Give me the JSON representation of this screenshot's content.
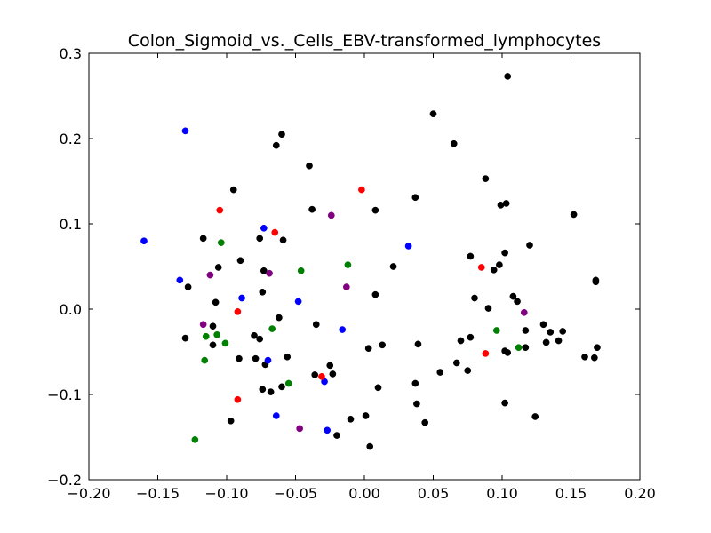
{
  "chart_data": {
    "type": "scatter",
    "title": "Colon_Sigmoid_vs._Cells_EBV-transformed_lymphocytes",
    "xlabel": "",
    "ylabel": "",
    "xlim": [
      -0.2,
      0.2
    ],
    "ylim": [
      -0.2,
      0.3
    ],
    "x_ticks": [
      -0.2,
      -0.15,
      -0.1,
      -0.05,
      0.0,
      0.05,
      0.1,
      0.15,
      0.2
    ],
    "x_tick_labels": [
      "−0.20",
      "−0.15",
      "−0.10",
      "−0.05",
      "0.00",
      "0.05",
      "0.10",
      "0.15",
      "0.20"
    ],
    "y_ticks": [
      -0.2,
      -0.1,
      0.0,
      0.1,
      0.2,
      0.3
    ],
    "y_tick_labels": [
      "−0.2",
      "−0.1",
      "0.0",
      "0.1",
      "0.2",
      "0.3"
    ],
    "grid": false,
    "legend": "none",
    "series": [
      {
        "color": "#000000",
        "points": [
          [
            0.104,
            0.273
          ],
          [
            0.05,
            0.229
          ],
          [
            -0.06,
            0.205
          ],
          [
            0.065,
            0.194
          ],
          [
            -0.064,
            0.192
          ],
          [
            -0.04,
            0.168
          ],
          [
            0.088,
            0.153
          ],
          [
            -0.095,
            0.14
          ],
          [
            0.037,
            0.131
          ],
          [
            0.103,
            0.124
          ],
          [
            0.099,
            0.122
          ],
          [
            -0.038,
            0.117
          ],
          [
            0.008,
            0.116
          ],
          [
            0.152,
            0.111
          ],
          [
            -0.117,
            0.083
          ],
          [
            -0.076,
            0.083
          ],
          [
            -0.059,
            0.081
          ],
          [
            0.12,
            0.075
          ],
          [
            0.102,
            0.066
          ],
          [
            0.077,
            0.062
          ],
          [
            -0.09,
            0.057
          ],
          [
            0.098,
            0.052
          ],
          [
            0.021,
            0.05
          ],
          [
            -0.106,
            0.049
          ],
          [
            0.094,
            0.046
          ],
          [
            -0.073,
            0.045
          ],
          [
            0.168,
            0.034
          ],
          [
            0.168,
            0.032
          ],
          [
            -0.128,
            0.026
          ],
          [
            -0.074,
            0.02
          ],
          [
            0.008,
            0.017
          ],
          [
            0.108,
            0.015
          ],
          [
            0.08,
            0.013
          ],
          [
            0.111,
            0.009
          ],
          [
            -0.108,
            0.008
          ],
          [
            0.09,
            0.001
          ],
          [
            -0.062,
            -0.01
          ],
          [
            0.13,
            -0.018
          ],
          [
            -0.035,
            -0.018
          ],
          [
            -0.11,
            -0.02
          ],
          [
            0.117,
            -0.025
          ],
          [
            0.135,
            -0.027
          ],
          [
            0.144,
            -0.026
          ],
          [
            -0.08,
            -0.031
          ],
          [
            0.077,
            -0.033
          ],
          [
            -0.13,
            -0.034
          ],
          [
            -0.076,
            -0.035
          ],
          [
            0.07,
            -0.037
          ],
          [
            0.141,
            -0.037
          ],
          [
            0.132,
            -0.039
          ],
          [
            0.013,
            -0.042
          ],
          [
            0.039,
            -0.041
          ],
          [
            -0.11,
            -0.042
          ],
          [
            0.117,
            -0.045
          ],
          [
            0.169,
            -0.045
          ],
          [
            0.003,
            -0.046
          ],
          [
            0.102,
            -0.049
          ],
          [
            0.104,
            -0.051
          ],
          [
            -0.056,
            -0.056
          ],
          [
            -0.091,
            -0.058
          ],
          [
            -0.079,
            -0.058
          ],
          [
            0.16,
            -0.056
          ],
          [
            0.167,
            -0.057
          ],
          [
            0.067,
            -0.063
          ],
          [
            -0.072,
            -0.065
          ],
          [
            -0.025,
            -0.066
          ],
          [
            0.075,
            -0.072
          ],
          [
            0.055,
            -0.074
          ],
          [
            -0.023,
            -0.076
          ],
          [
            -0.036,
            -0.077
          ],
          [
            0.037,
            -0.087
          ],
          [
            -0.06,
            -0.091
          ],
          [
            0.01,
            -0.092
          ],
          [
            -0.074,
            -0.094
          ],
          [
            -0.068,
            -0.097
          ],
          [
            0.102,
            -0.11
          ],
          [
            0.038,
            -0.111
          ],
          [
            0.124,
            -0.126
          ],
          [
            0.001,
            -0.125
          ],
          [
            -0.01,
            -0.129
          ],
          [
            -0.097,
            -0.131
          ],
          [
            0.044,
            -0.133
          ],
          [
            -0.02,
            -0.148
          ],
          [
            0.004,
            -0.161
          ]
        ]
      },
      {
        "color": "#0000ff",
        "points": [
          [
            -0.13,
            0.209
          ],
          [
            -0.16,
            0.08
          ],
          [
            -0.073,
            0.095
          ],
          [
            0.032,
            0.074
          ],
          [
            -0.134,
            0.034
          ],
          [
            -0.089,
            0.013
          ],
          [
            -0.048,
            0.009
          ],
          [
            -0.016,
            -0.024
          ],
          [
            -0.07,
            -0.06
          ],
          [
            -0.029,
            -0.085
          ],
          [
            -0.064,
            -0.125
          ],
          [
            -0.027,
            -0.142
          ]
        ]
      },
      {
        "color": "#ff0000",
        "points": [
          [
            -0.002,
            0.14
          ],
          [
            -0.105,
            0.116
          ],
          [
            -0.065,
            0.09
          ],
          [
            0.085,
            0.049
          ],
          [
            -0.092,
            -0.003
          ],
          [
            -0.031,
            -0.079
          ],
          [
            0.088,
            -0.052
          ],
          [
            -0.092,
            -0.106
          ]
        ]
      },
      {
        "color": "#008000",
        "points": [
          [
            -0.104,
            0.078
          ],
          [
            -0.012,
            0.052
          ],
          [
            -0.046,
            0.045
          ],
          [
            -0.067,
            -0.023
          ],
          [
            -0.115,
            -0.032
          ],
          [
            -0.107,
            -0.03
          ],
          [
            -0.101,
            -0.04
          ],
          [
            0.096,
            -0.025
          ],
          [
            0.112,
            -0.045
          ],
          [
            -0.116,
            -0.06
          ],
          [
            -0.055,
            -0.087
          ],
          [
            -0.123,
            -0.153
          ]
        ]
      },
      {
        "color": "#800080",
        "points": [
          [
            -0.024,
            0.11
          ],
          [
            -0.112,
            0.04
          ],
          [
            -0.069,
            0.042
          ],
          [
            -0.013,
            0.026
          ],
          [
            0.116,
            -0.004
          ],
          [
            -0.117,
            -0.018
          ],
          [
            -0.047,
            -0.14
          ]
        ]
      }
    ]
  }
}
